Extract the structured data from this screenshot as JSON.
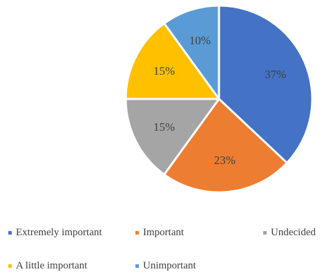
{
  "chart_data": {
    "type": "pie",
    "title": "",
    "slices": [
      {
        "label": "Extremely important",
        "value": 37,
        "display": "37%",
        "color": "#4472C4"
      },
      {
        "label": "Important",
        "value": 23,
        "display": "23%",
        "color": "#ED7D31"
      },
      {
        "label": "Undecided",
        "value": 15,
        "display": "15%",
        "color": "#A5A5A5"
      },
      {
        "label": "A little important",
        "value": 15,
        "display": "15%",
        "color": "#FFC000"
      },
      {
        "label": "Unimportant",
        "value": 10,
        "display": "10%",
        "color": "#5B9BD5"
      }
    ],
    "legend_position": "bottom"
  }
}
